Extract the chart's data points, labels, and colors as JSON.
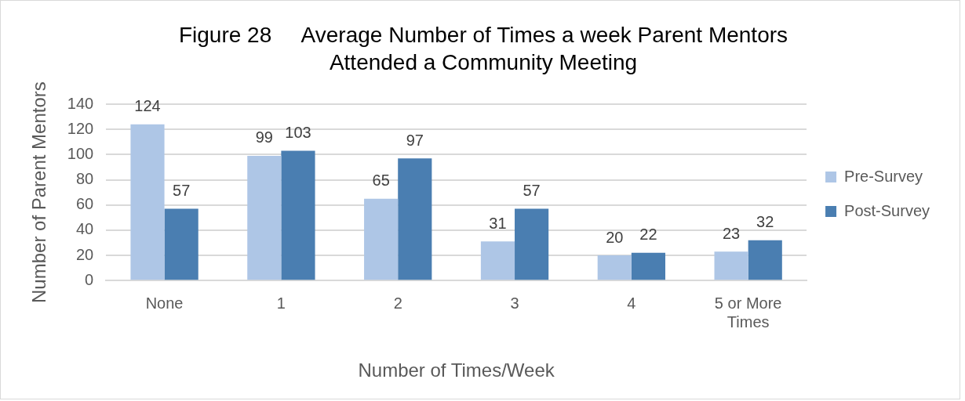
{
  "chart_data": {
    "type": "bar",
    "title": "Figure 28     Average Number of Times a week Parent Mentors\nAttended a Community Meeting",
    "xlabel": "Number of Times/Week",
    "ylabel": "Number of Parent Mentors",
    "categories": [
      "None",
      "1",
      "2",
      "3",
      "4",
      "5 or More Times"
    ],
    "series": [
      {
        "name": "Pre-Survey",
        "color": "#aec6e6",
        "values": [
          124,
          99,
          65,
          31,
          20,
          23
        ]
      },
      {
        "name": "Post-Survey",
        "color": "#4a7eb1",
        "values": [
          57,
          103,
          97,
          57,
          22,
          32
        ]
      }
    ],
    "ylim": [
      0,
      140
    ],
    "yticks": [
      0,
      20,
      40,
      60,
      80,
      100,
      120,
      140
    ],
    "grid": "y",
    "legend": "right",
    "data_labels": true
  }
}
